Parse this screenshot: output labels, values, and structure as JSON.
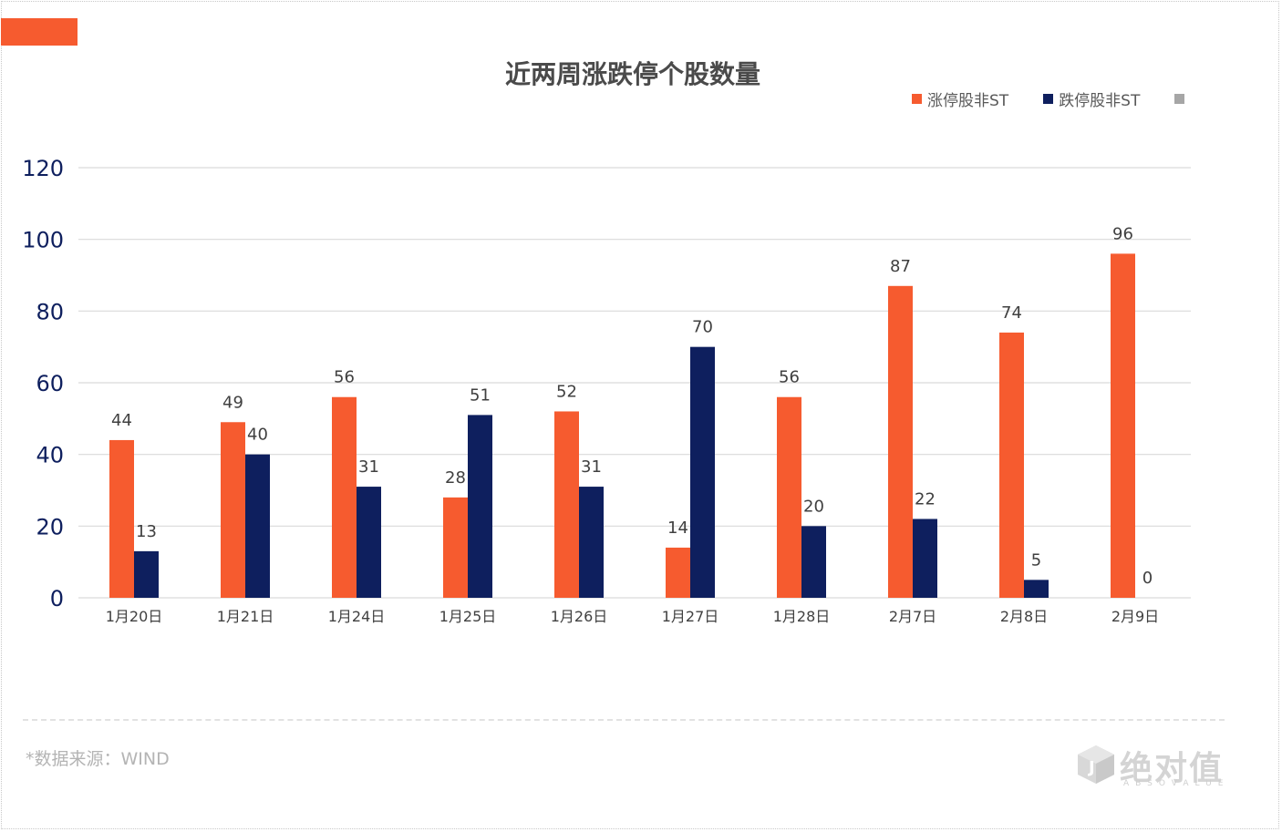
{
  "header": {
    "title": "近两周涨跌停个股数量"
  },
  "legend": [
    {
      "label": "涨停股非ST",
      "color": "#f65b2f"
    },
    {
      "label": "跌停股非ST",
      "color": "#0e1f5e"
    },
    {
      "label": "",
      "color": "#a6a6a6"
    }
  ],
  "footer": {
    "source": "*数据来源：WIND"
  },
  "logo": {
    "text": "绝对值",
    "sub": "ABSOVALUE"
  },
  "chart_data": {
    "type": "bar",
    "title": "近两周涨跌停个股数量",
    "categories": [
      "1月20日",
      "1月21日",
      "1月24日",
      "1月25日",
      "1月26日",
      "1月27日",
      "1月28日",
      "2月7日",
      "2月8日",
      "2月9日"
    ],
    "series": [
      {
        "name": "涨停股非ST",
        "color": "#f65b2f",
        "values": [
          44,
          49,
          56,
          28,
          52,
          14,
          56,
          87,
          74,
          96
        ],
        "labels": [
          "44",
          "49",
          "56",
          "28",
          "52",
          "14",
          "56",
          "87",
          "74",
          "96"
        ]
      },
      {
        "name": "跌停股非ST",
        "color": "#0e1f5e",
        "values": [
          13,
          40,
          31,
          51,
          31,
          70,
          20,
          22,
          5,
          0
        ],
        "labels": [
          "13",
          "40",
          "31",
          "51",
          "31",
          "70",
          "20",
          "22",
          "5",
          "0"
        ]
      }
    ],
    "yticks": [
      "0",
      "20",
      "40",
      "60",
      "80",
      "100",
      "120"
    ],
    "ylim": [
      0,
      120
    ],
    "grid": true,
    "legend_position": "top-right"
  }
}
